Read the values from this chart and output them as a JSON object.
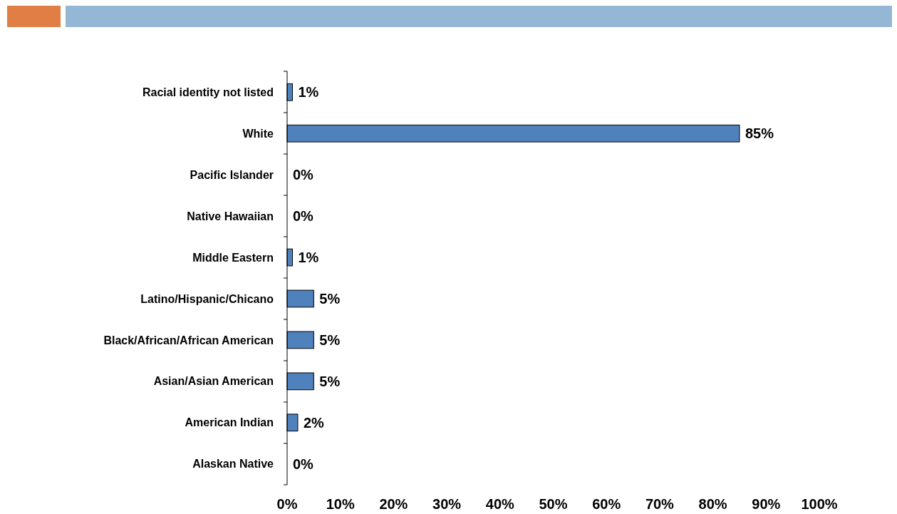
{
  "chart_data": {
    "type": "bar",
    "orientation": "horizontal",
    "categories": [
      "Racial identity not listed",
      "White",
      "Pacific Islander",
      "Native Hawaiian",
      "Middle Eastern",
      "Latino/Hispanic/Chicano",
      "Black/African/African American",
      "Asian/Asian American",
      "American Indian",
      "Alaskan Native"
    ],
    "values": [
      1,
      85,
      0,
      0,
      1,
      5,
      5,
      5,
      2,
      0
    ],
    "value_labels": [
      "1%",
      "85%",
      "0%",
      "0%",
      "1%",
      "5%",
      "5%",
      "5%",
      "2%",
      "0%"
    ],
    "color": "#4f81bd",
    "xlim": [
      0,
      100
    ],
    "xticks": [
      {
        "value": 0,
        "label": "0%"
      },
      {
        "value": 10,
        "label": "10%"
      },
      {
        "value": 20,
        "label": "20%"
      },
      {
        "value": 30,
        "label": "30%"
      },
      {
        "value": 40,
        "label": "40%"
      },
      {
        "value": 50,
        "label": "50%"
      },
      {
        "value": 60,
        "label": "60%"
      },
      {
        "value": 70,
        "label": "70%"
      },
      {
        "value": 80,
        "label": "80%"
      },
      {
        "value": 90,
        "label": "90%"
      },
      {
        "value": 100,
        "label": "100%"
      }
    ],
    "grid": false
  }
}
